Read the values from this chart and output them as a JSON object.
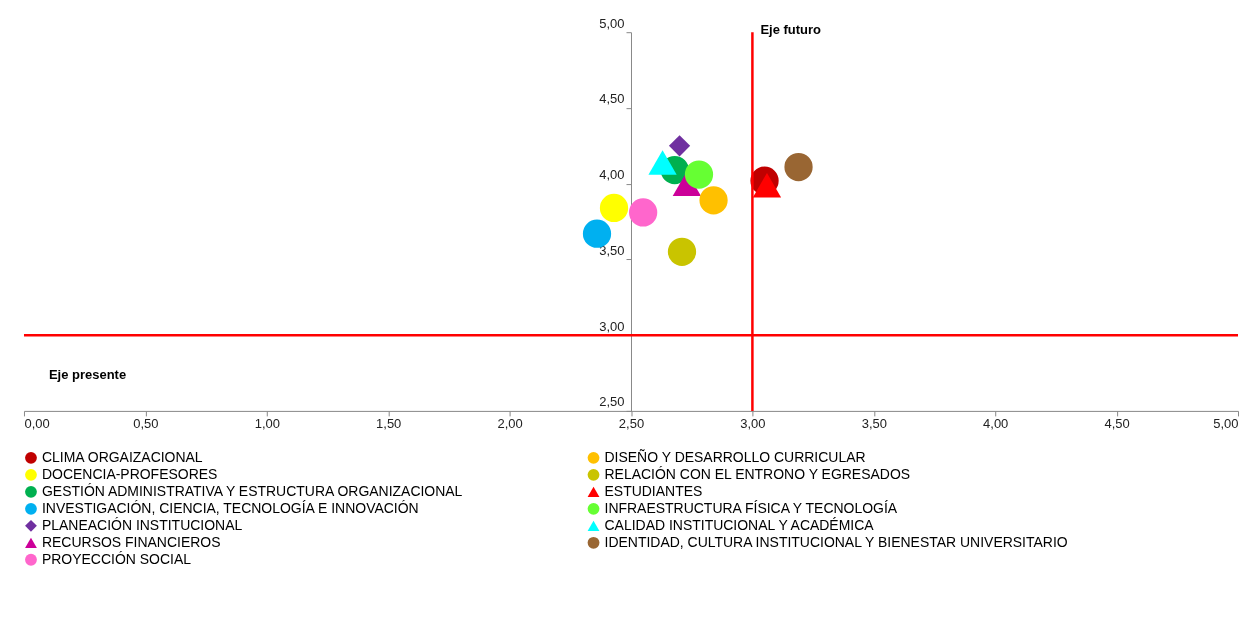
{
  "chart_data": {
    "type": "scatter",
    "xlim": [
      0,
      5
    ],
    "ylim": [
      2.5,
      5
    ],
    "xticks": [
      {
        "value": 0,
        "label": "0,00"
      },
      {
        "value": 0.5,
        "label": "0,50"
      },
      {
        "value": 1,
        "label": "1,00"
      },
      {
        "value": 1.5,
        "label": "1,50"
      },
      {
        "value": 2,
        "label": "2,00"
      },
      {
        "value": 2.5,
        "label": "2,50"
      },
      {
        "value": 3,
        "label": "3,00"
      },
      {
        "value": 3.5,
        "label": "3,50"
      },
      {
        "value": 4,
        "label": "4,00"
      },
      {
        "value": 4.5,
        "label": "4,50"
      },
      {
        "value": 5,
        "label": "5,00"
      }
    ],
    "yticks": [
      {
        "value": 2.5,
        "label": "2,50"
      },
      {
        "value": 3,
        "label": "3,00"
      },
      {
        "value": 3.5,
        "label": "3,50"
      },
      {
        "value": 4,
        "label": "4,00"
      },
      {
        "value": 4.5,
        "label": "4,50"
      },
      {
        "value": 5,
        "label": "5,00"
      }
    ],
    "grid": false,
    "legend": "bottom",
    "ref_lines": [
      {
        "axis": "x",
        "value": 3,
        "label": "Eje futuro",
        "color": "#ff0000"
      },
      {
        "axis": "y",
        "value": 3,
        "label": "Eje presente",
        "color": "#ff0000"
      }
    ],
    "series": [
      {
        "name": "CLIMA ORGAIZACIONAL",
        "color": "#c00000",
        "marker": "circle",
        "x": [
          3.05
        ],
        "values": [
          4.02
        ]
      },
      {
        "name": "DOCENCIA-PROFESORES",
        "color": "#ffff00",
        "marker": "circle",
        "x": [
          2.43
        ],
        "values": [
          3.84
        ]
      },
      {
        "name": "GESTIÓN ADMINISTRATIVA Y ESTRUCTURA ORGANIZACIONAL",
        "color": "#00b050",
        "marker": "circle",
        "x": [
          2.68
        ],
        "values": [
          4.09
        ]
      },
      {
        "name": "INVESTIGACIÓN, CIENCIA, TECNOLOGÍA E INNOVACIÓN",
        "color": "#00b0f0",
        "marker": "circle",
        "x": [
          2.36
        ],
        "values": [
          3.67
        ]
      },
      {
        "name": "PLANEACIÓN INSTITUCIONAL",
        "color": "#7030a0",
        "marker": "diamond",
        "x": [
          2.7
        ],
        "values": [
          4.25
        ]
      },
      {
        "name": "RECURSOS FINANCIEROS",
        "color": "#cc0099",
        "marker": "triangle",
        "x": [
          2.73
        ],
        "values": [
          4.0
        ]
      },
      {
        "name": "PROYECCIÓN SOCIAL",
        "color": "#ff66cc",
        "marker": "circle",
        "x": [
          2.55
        ],
        "values": [
          3.81
        ]
      },
      {
        "name": "DISEÑO Y DESARROLLO CURRICULAR",
        "color": "#ffc000",
        "marker": "circle",
        "x": [
          2.84
        ],
        "values": [
          3.89
        ]
      },
      {
        "name": "RELACIÓN CON EL ENTRONO Y EGRESADOS",
        "color": "#c9c400",
        "marker": "circle",
        "x": [
          2.71
        ],
        "values": [
          3.55
        ]
      },
      {
        "name": "ESTUDIANTES",
        "color": "#ff0000",
        "marker": "triangle",
        "x": [
          3.06
        ],
        "values": [
          3.99
        ]
      },
      {
        "name": "INFRAESTRUCTURA FÍSICA Y TECNOLOGÍA",
        "color": "#66ff33",
        "marker": "circle",
        "x": [
          2.78
        ],
        "values": [
          4.06
        ]
      },
      {
        "name": "CALIDAD INSTITUCIONAL Y ACADÉMICA",
        "color": "#00ffff",
        "marker": "triangle",
        "x": [
          2.63
        ],
        "values": [
          4.14
        ]
      },
      {
        "name": "IDENTIDAD, CULTURA INSTITUCIONAL Y BIENESTAR UNIVERSITARIO",
        "color": "#996633",
        "marker": "circle",
        "x": [
          3.19
        ],
        "values": [
          4.11
        ]
      }
    ]
  }
}
